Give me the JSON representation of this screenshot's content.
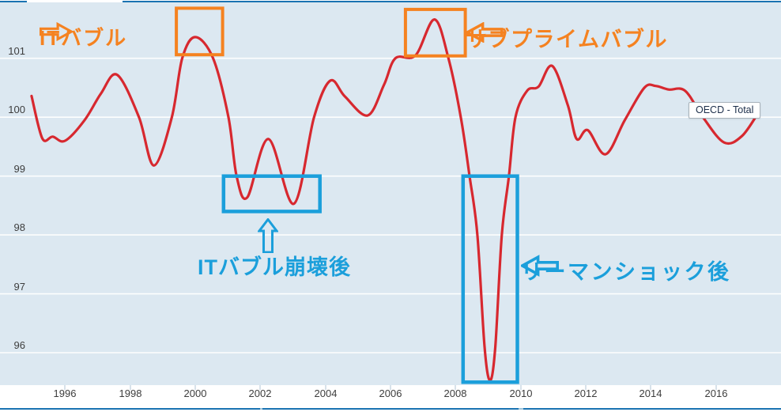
{
  "palette": {
    "line_red": "#d7282f",
    "annotation_orange": "#f58220",
    "annotation_cyan": "#1b9fdb",
    "frame_blue": "#1a73b2",
    "plot_background": "#dce8f1",
    "gridline": "#fdfefe"
  },
  "tooltip": {
    "label": "OECD - Total"
  },
  "chart_data": {
    "type": "line",
    "title": "",
    "xlabel": "",
    "ylabel": "",
    "x_range": [
      1994.0,
      2018.0
    ],
    "y_range": [
      95.45,
      101.95
    ],
    "x_ticks": [
      1996,
      1998,
      2000,
      2002,
      2004,
      2006,
      2008,
      2010,
      2012,
      2014,
      2016
    ],
    "y_ticks": [
      96,
      97,
      98,
      99,
      100,
      101
    ],
    "grid": "horizontal",
    "legend_position": "tooltip-at-line-end",
    "series": [
      {
        "name": "OECD - Total",
        "color": "#d7282f",
        "points": [
          [
            1994.97,
            100.36
          ],
          [
            1995.3,
            99.64
          ],
          [
            1995.62,
            99.67
          ],
          [
            1996.0,
            99.6
          ],
          [
            1996.6,
            99.95
          ],
          [
            1997.1,
            100.4
          ],
          [
            1997.6,
            100.72
          ],
          [
            1998.27,
            100.0
          ],
          [
            1998.73,
            99.18
          ],
          [
            1999.28,
            100.0
          ],
          [
            1999.6,
            101.0
          ],
          [
            2000.0,
            101.36
          ],
          [
            2000.55,
            101.0
          ],
          [
            2001.02,
            100.0
          ],
          [
            2001.27,
            99.0
          ],
          [
            2001.6,
            98.64
          ],
          [
            2002.25,
            99.63
          ],
          [
            2003.03,
            98.53
          ],
          [
            2003.65,
            100.0
          ],
          [
            2004.15,
            100.62
          ],
          [
            2004.6,
            100.35
          ],
          [
            2005.3,
            100.03
          ],
          [
            2005.8,
            100.55
          ],
          [
            2006.15,
            101.0
          ],
          [
            2006.77,
            101.05
          ],
          [
            2007.35,
            101.66
          ],
          [
            2007.78,
            101.0
          ],
          [
            2008.16,
            100.0
          ],
          [
            2008.43,
            99.0
          ],
          [
            2008.67,
            98.0
          ],
          [
            2008.89,
            96.1
          ],
          [
            2009.06,
            95.53
          ],
          [
            2009.22,
            96.1
          ],
          [
            2009.42,
            98.0
          ],
          [
            2009.64,
            99.0
          ],
          [
            2009.84,
            100.0
          ],
          [
            2010.2,
            100.45
          ],
          [
            2010.55,
            100.52
          ],
          [
            2010.97,
            100.87
          ],
          [
            2011.45,
            100.2
          ],
          [
            2011.72,
            99.63
          ],
          [
            2012.06,
            99.78
          ],
          [
            2012.61,
            99.37
          ],
          [
            2013.2,
            99.95
          ],
          [
            2013.8,
            100.5
          ],
          [
            2014.15,
            100.53
          ],
          [
            2014.55,
            100.47
          ],
          [
            2015.05,
            100.45
          ],
          [
            2015.6,
            100.0
          ],
          [
            2016.25,
            99.57
          ],
          [
            2016.8,
            99.68
          ],
          [
            2017.32,
            100.09
          ]
        ]
      }
    ],
    "annotations": {
      "boxes": [
        {
          "label": "it-bubble",
          "color": "#f58220",
          "x0": 1999.42,
          "x1": 2000.84,
          "y0": 101.06,
          "y1": 101.85,
          "stroke": 4
        },
        {
          "label": "subprime-bubble",
          "color": "#f58220",
          "x0": 2006.46,
          "x1": 2008.3,
          "y0": 101.04,
          "y1": 101.83,
          "stroke": 4
        },
        {
          "label": "it-collapse",
          "color": "#1b9fdb",
          "x0": 2000.87,
          "x1": 2003.83,
          "y0": 98.4,
          "y1": 99.0,
          "stroke": 4.5
        },
        {
          "label": "lehman-shock",
          "color": "#1b9fdb",
          "x0": 2008.23,
          "x1": 2009.9,
          "y0": 95.5,
          "y1": 99.0,
          "stroke": 4.5
        }
      ],
      "labels": [
        {
          "id": "it-bubble",
          "text": "ITバブル",
          "color": "#f58220",
          "arrow": "right"
        },
        {
          "id": "subprime-bubble",
          "text": "サブプライムバブル",
          "color": "#f58220",
          "arrow": "left"
        },
        {
          "id": "it-collapse",
          "text": "ITバブル崩壊後",
          "color": "#1b9fdb",
          "arrow": "up"
        },
        {
          "id": "lehman-shock",
          "text": "リーマンショック後",
          "color": "#1b9fdb",
          "arrow": "left"
        }
      ]
    }
  }
}
